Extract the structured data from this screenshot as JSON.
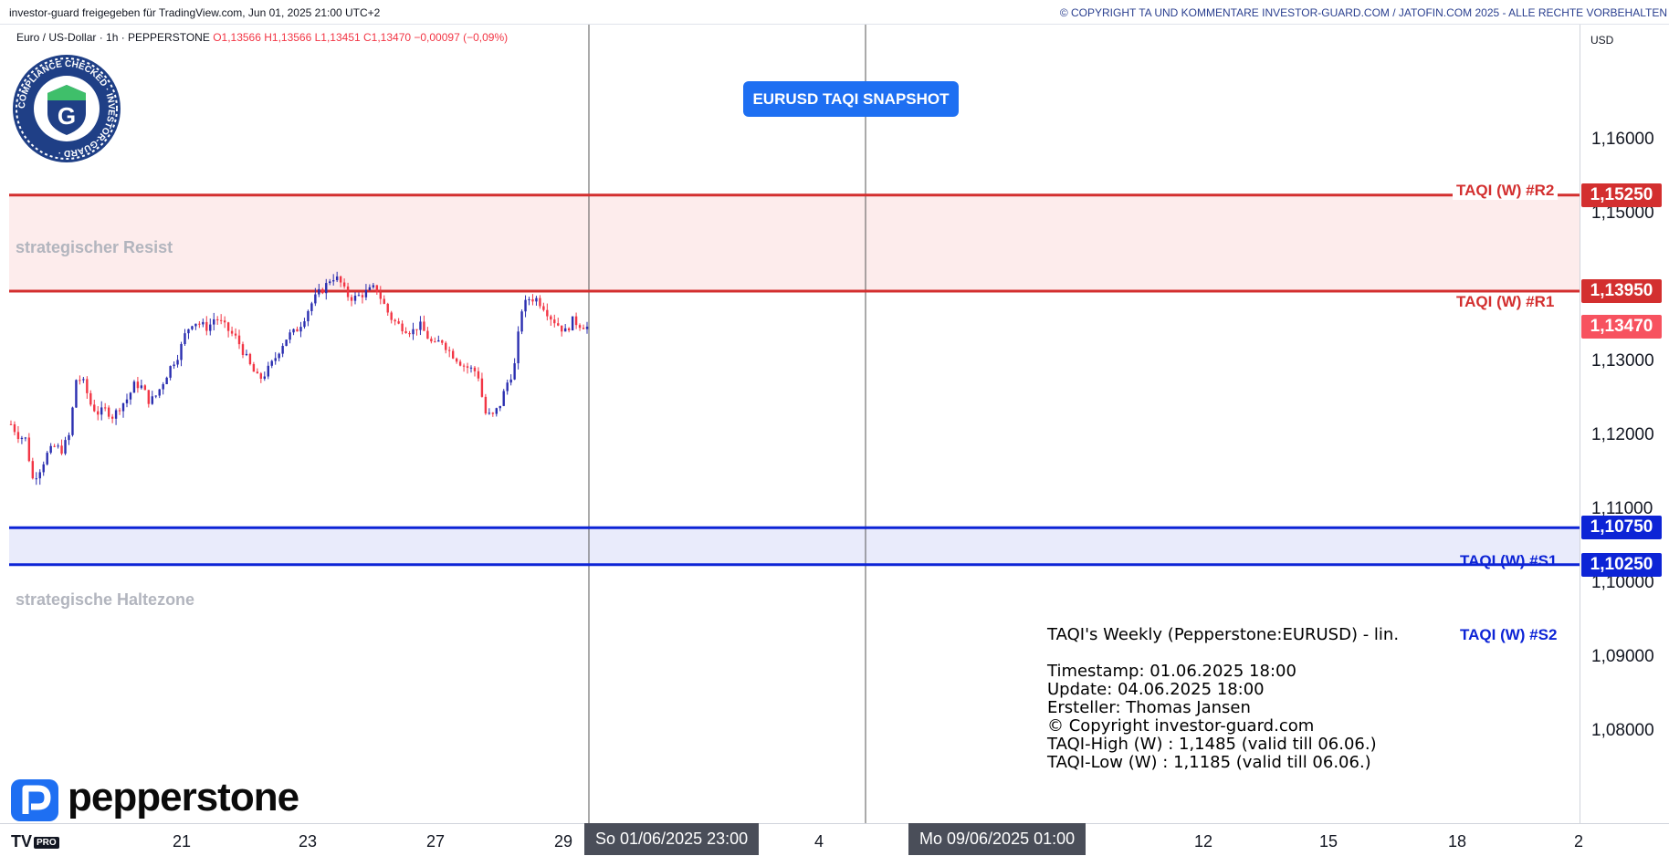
{
  "header": {
    "left_text": "investor-guard freigegeben für TradingView.com, Jun 01, 2025 21:00 UTC+2",
    "right_text": "© COPYRIGHT TA UND KOMMENTARE INVESTOR-GUARD.COM / JATOFIN.COM 2025 - ALLE RECHTE VORBEHALTEN"
  },
  "symbol_info": {
    "name": "Euro / US-Dollar · 1h · PEPPERSTONE",
    "ohlc": "O1,13566  H1,13566  L1,13451  C1,13470  −0,00097 (−0,09%)"
  },
  "badge": {
    "ring_text": "COMPLIANCE CHECKED · INVESTOR-GUARD ·",
    "letter": "G"
  },
  "snapshot_label": "EURUSD TAQI SNAPSHOT",
  "chart_data": {
    "type": "candlestick",
    "title": "",
    "currency_unit": "USD",
    "ylim": [
      1.076,
      1.1685
    ],
    "y_ticks": [
      {
        "value": 1.16,
        "label": "1,16000"
      },
      {
        "value": 1.15,
        "label": "1,15000"
      },
      {
        "value": 1.13,
        "label": "1,13000"
      },
      {
        "value": 1.12,
        "label": "1,12000"
      },
      {
        "value": 1.11,
        "label": "1,11000"
      },
      {
        "value": 1.1,
        "label": "1,10000"
      },
      {
        "value": 1.09,
        "label": "1,09000"
      },
      {
        "value": 1.08,
        "label": "1,08000"
      }
    ],
    "x_ticks": [
      "21",
      "23",
      "27",
      "29",
      "4",
      "12",
      "15",
      "18",
      "2"
    ],
    "x_highlight_labels": [
      "So 01/06/2025   23:00",
      "Mo 09/06/2025   01:00"
    ],
    "last_price": {
      "value": 1.1347,
      "label": "1,13470",
      "color": "#f7525f"
    },
    "levels": [
      {
        "name": "TAQI (W) #R2",
        "value": 1.1525,
        "label": "1,15250",
        "color": "#d32f2f"
      },
      {
        "name": "TAQI (W) #R1",
        "value": 1.1395,
        "label": "1,13950",
        "color": "#d32f2f"
      },
      {
        "name": "TAQI (W) #S1",
        "value": 1.1075,
        "label": "1,10750",
        "color": "#0d24d6"
      },
      {
        "name": "TAQI (W) #S2",
        "value": 1.1025,
        "label": "1,10250",
        "color": "#0d24d6"
      }
    ],
    "zones": [
      {
        "label": "strategischer Resist",
        "from": 1.1395,
        "to": 1.1525,
        "color": "#fdecec"
      },
      {
        "label": "strategische Haltezone",
        "from": 1.1025,
        "to": 1.1075,
        "color": "#e9ebfb"
      }
    ],
    "up_color": "#2a2eb0",
    "down_color": "#f23645",
    "close_path": [
      1.1215,
      1.12,
      1.1195,
      1.114,
      1.1155,
      1.1175,
      1.1185,
      1.118,
      1.12,
      1.128,
      1.127,
      1.124,
      1.123,
      1.1235,
      1.1225,
      1.124,
      1.125,
      1.127,
      1.1265,
      1.1245,
      1.1255,
      1.1275,
      1.1295,
      1.131,
      1.134,
      1.1355,
      1.135,
      1.1345,
      1.136,
      1.135,
      1.134,
      1.133,
      1.131,
      1.129,
      1.1275,
      1.1285,
      1.13,
      1.132,
      1.1335,
      1.134,
      1.1355,
      1.1375,
      1.139,
      1.14,
      1.1415,
      1.141,
      1.139,
      1.1385,
      1.139,
      1.1395,
      1.14,
      1.138,
      1.136,
      1.135,
      1.1345,
      1.134,
      1.135,
      1.1335,
      1.132,
      1.133,
      1.1315,
      1.1305,
      1.1295,
      1.129,
      1.1285,
      1.123,
      1.1225,
      1.124,
      1.127,
      1.129,
      1.137,
      1.1385,
      1.1385,
      1.1375,
      1.136,
      1.135,
      1.134,
      1.1355,
      1.135,
      1.1347
    ]
  },
  "notes": {
    "title": "TAQI's Weekly (Pepperstone:EURUSD) - lin.",
    "lines": [
      "Timestamp: 01.06.2025 18:00",
      "Update: 04.06.2025 18:00",
      "Ersteller: Thomas Jansen",
      "© Copyright investor-guard.com",
      "TAQI-High (W) : 1,1485 (valid till 06.06.)",
      "TAQI-Low (W) : 1,1185 (valid till 06.06.)"
    ]
  },
  "brand": "pepperstone",
  "platform_logo": {
    "text": "TV",
    "badge": "PRO"
  },
  "colors": {
    "accent_blue": "#1e6ff2",
    "resist_red": "#d32f2f",
    "support_blue": "#0d24d6"
  }
}
